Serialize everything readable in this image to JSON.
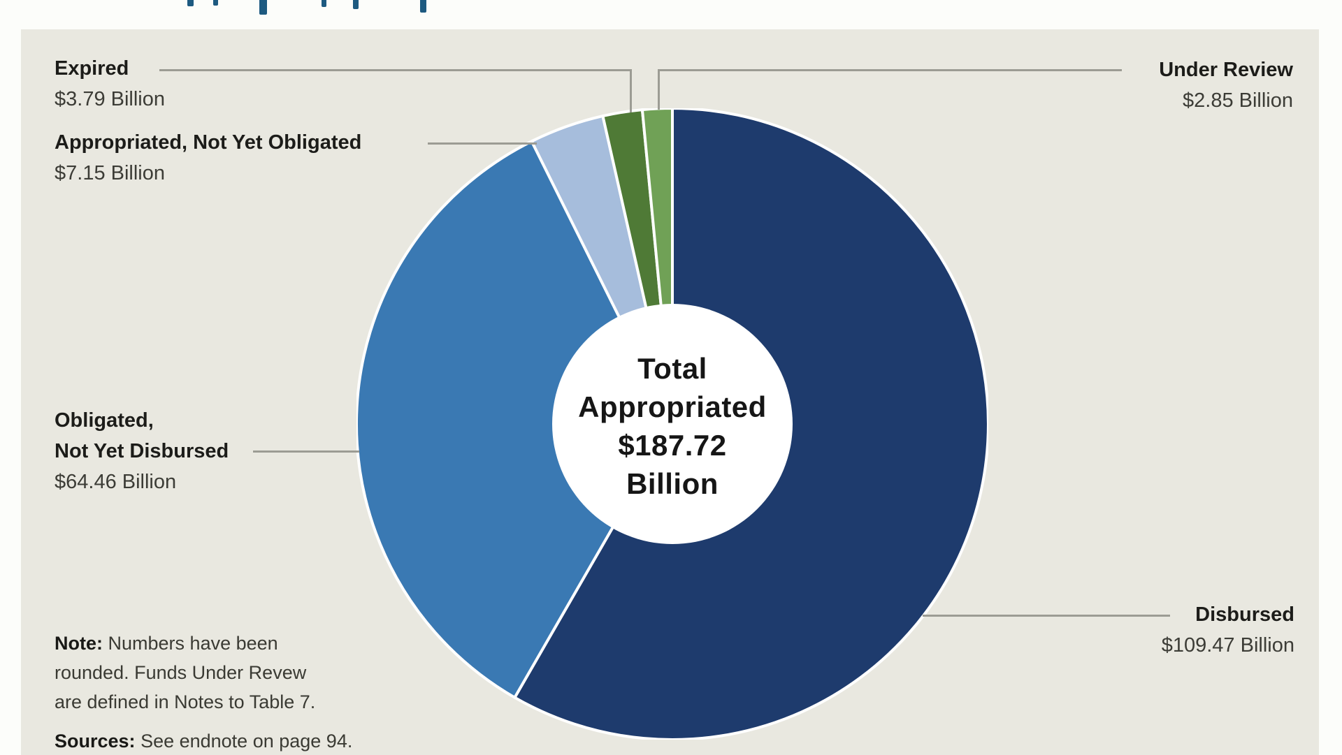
{
  "chart_data": {
    "type": "pie",
    "variant": "donut",
    "direction": "clockwise",
    "start_angle_deg": 0,
    "legend_position": "callout-labels",
    "center_label": {
      "line1": "Total",
      "line2": "Appropriated",
      "line3": "$187.72",
      "line4": "Billion"
    },
    "total": {
      "label": "Total Appropriated",
      "value_billions": 187.72,
      "display": "$187.72 Billion"
    },
    "slices": [
      {
        "label": "Disbursed",
        "value_billions": 109.47,
        "display": "$109.47 Billion",
        "color": "#1e3b6d",
        "percent": 58.3
      },
      {
        "label": "Obligated, Not Yet Disbursed",
        "value_billions": 64.46,
        "display": "$64.46 Billion",
        "color": "#3a79b3",
        "percent": 34.3
      },
      {
        "label": "Appropriated, Not Yet Obligated",
        "value_billions": 7.15,
        "display": "$7.15 Billion",
        "color": "#a6bddc",
        "percent": 3.8
      },
      {
        "label": "Expired",
        "value_billions": 3.79,
        "display": "$3.79 Billion",
        "color": "#4f7a36",
        "percent": 2.0
      },
      {
        "label": "Under Review",
        "value_billions": 2.85,
        "display": "$2.85 Billion",
        "color": "#70a156",
        "percent": 1.5
      }
    ]
  },
  "labels": {
    "obligated_line1": "Obligated,",
    "obligated_line2": "Not Yet Disbursed"
  },
  "footnotes": {
    "note_label": "Note:",
    "note_line1": "Numbers have been",
    "note_line2": "rounded. Funds Under Revew",
    "note_line3": "are defined in Notes to Table 7.",
    "sources_label": "Sources:",
    "sources_text": "See endnote on page 94."
  },
  "colors": {
    "panel_background": "#e9e8e0",
    "callout_line": "#9c9c94",
    "slice_divider": "#ffffff",
    "clipped_title_blue": "#1d5a80"
  }
}
